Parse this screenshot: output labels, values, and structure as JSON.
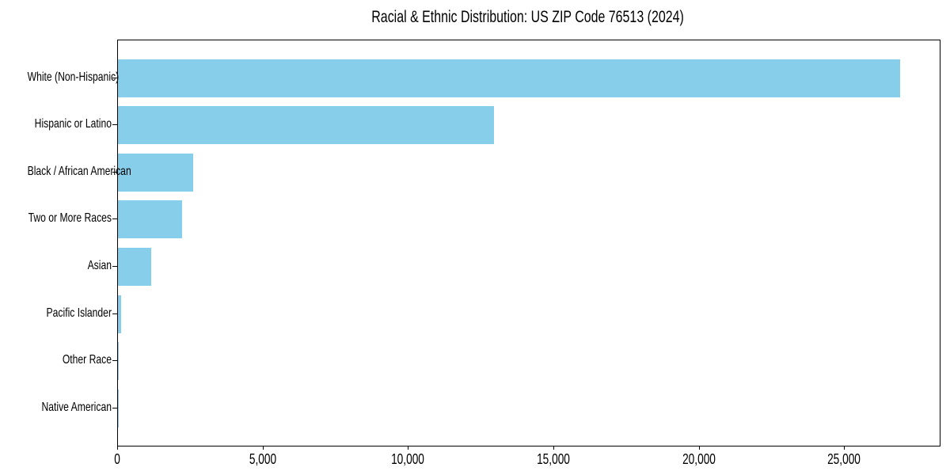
{
  "chart_data": {
    "type": "bar",
    "orientation": "horizontal",
    "title": "Racial & Ethnic Distribution: US ZIP Code 76513 (2024)",
    "categories": [
      "White (Non-Hispanic)",
      "Hispanic or Latino",
      "Black / African American",
      "Two or More Races",
      "Asian",
      "Pacific Islander",
      "Other Race",
      "Native American"
    ],
    "values": [
      26900,
      12930,
      2590,
      2210,
      1150,
      110,
      30,
      25
    ],
    "xlabel": "",
    "ylabel": "",
    "xlim": [
      0,
      28260
    ],
    "xticks": [
      0,
      5000,
      10000,
      15000,
      20000,
      25000
    ],
    "xtick_labels": [
      "0",
      "5,000",
      "10,000",
      "15,000",
      "20,000",
      "25,000"
    ],
    "bar_color": "#87CEEB",
    "spine_color": "#000000",
    "background_color": "#ffffff",
    "grid": false,
    "legend": null
  }
}
